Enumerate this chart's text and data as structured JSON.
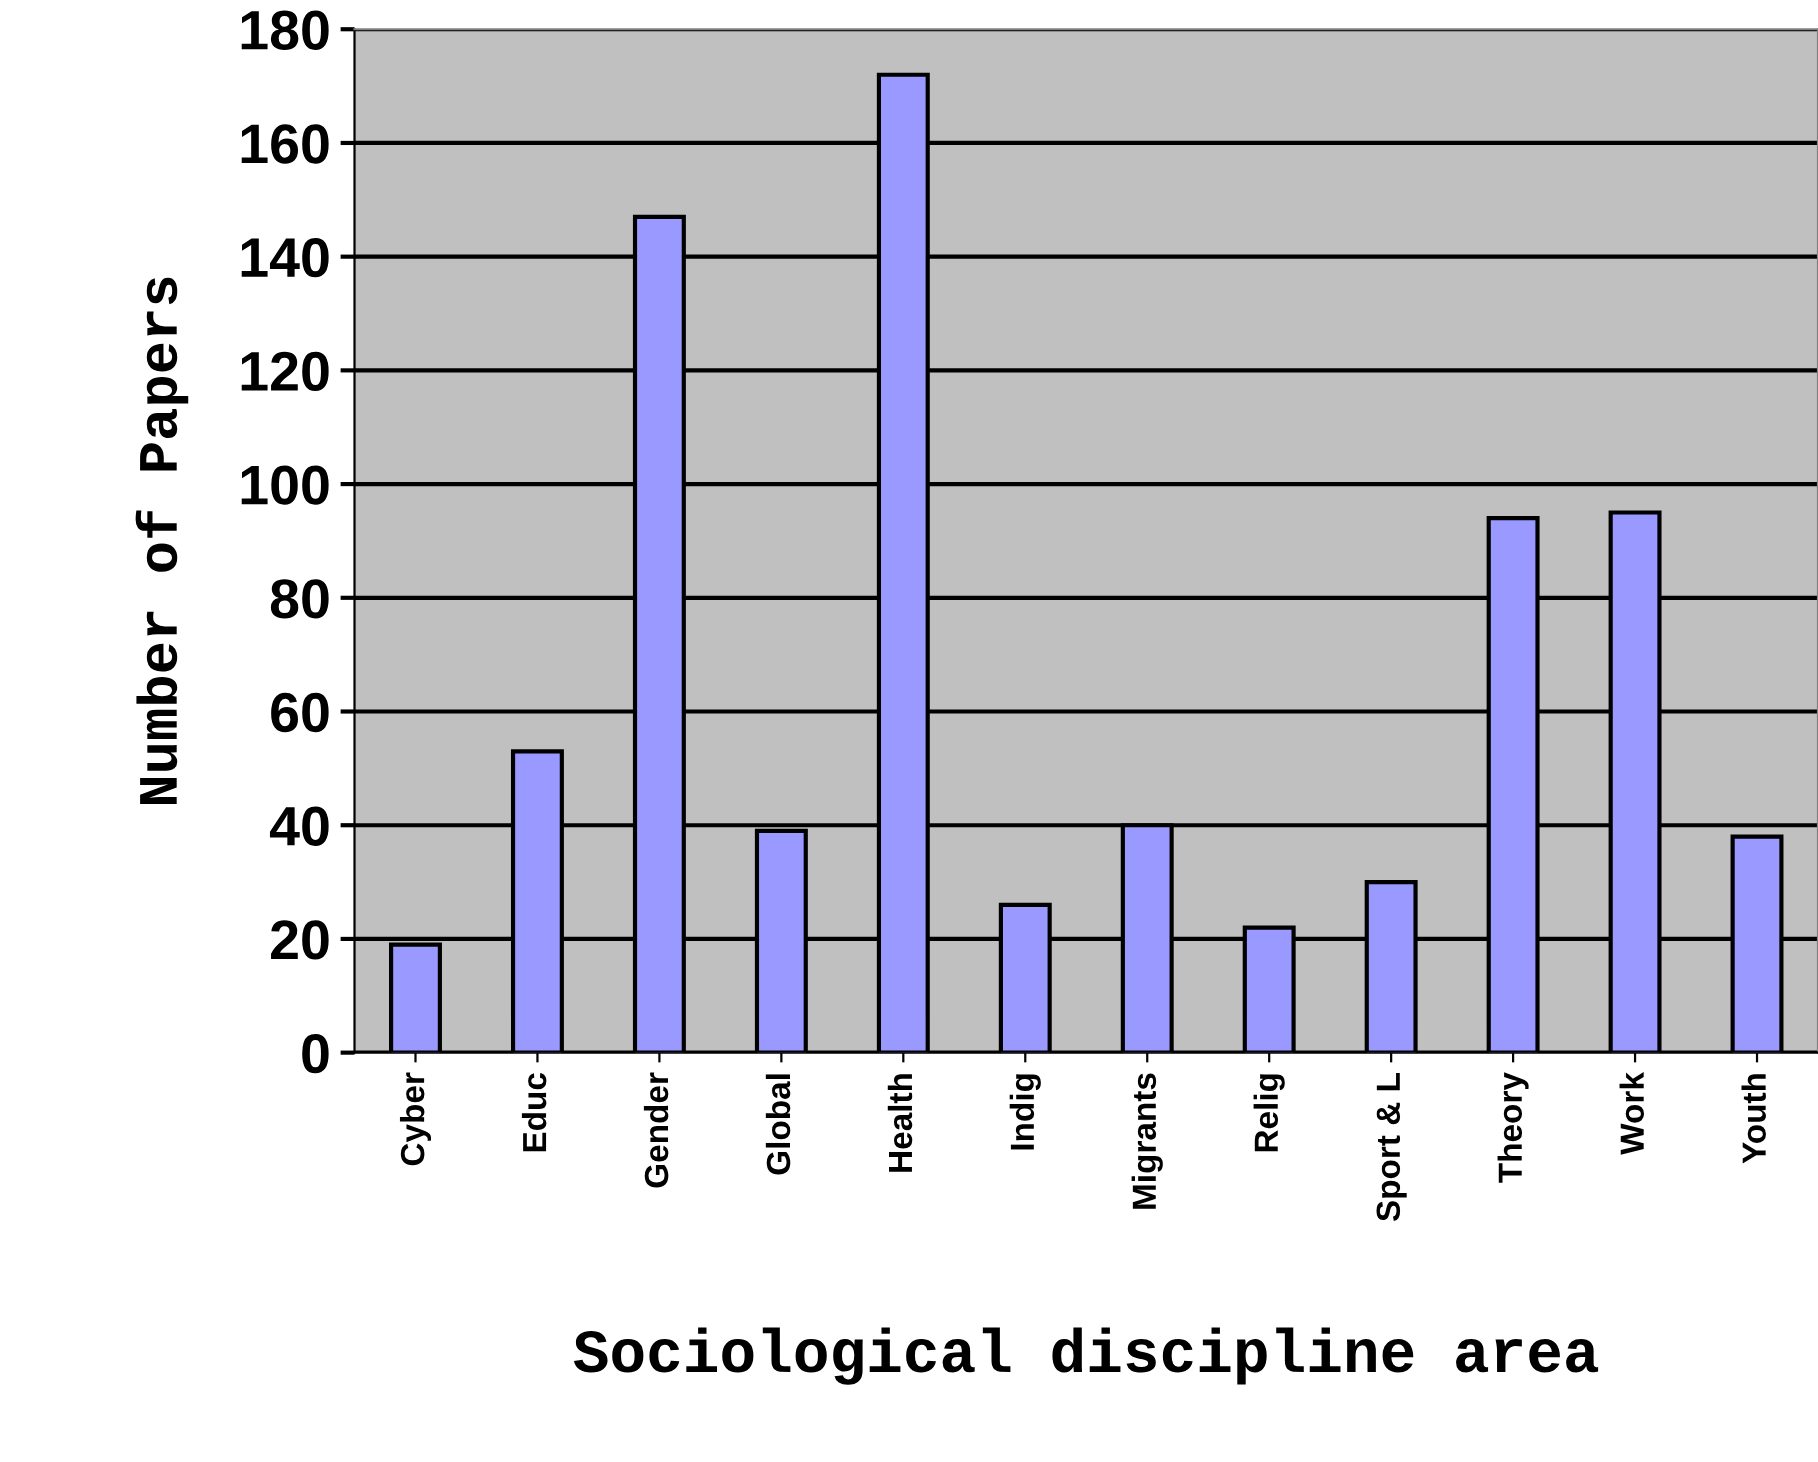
{
  "chart_data": {
    "type": "bar",
    "xlabel": "Sociological discipline area",
    "ylabel": "Number of Papers",
    "categories": [
      "Cyber",
      "Educ",
      "Gender",
      "Global",
      "Health",
      "Indig",
      "Migrants",
      "Relig",
      "Sport & L",
      "Theory",
      "Work",
      "Youth"
    ],
    "values": [
      19,
      53,
      147,
      39,
      172,
      26,
      40,
      22,
      30,
      94,
      95,
      38
    ],
    "color": "#9999ff",
    "ylim": [
      0,
      180
    ],
    "yticks": [
      0,
      20,
      40,
      60,
      80,
      100,
      120,
      140,
      160,
      180
    ],
    "grid": "y",
    "legend": false
  }
}
